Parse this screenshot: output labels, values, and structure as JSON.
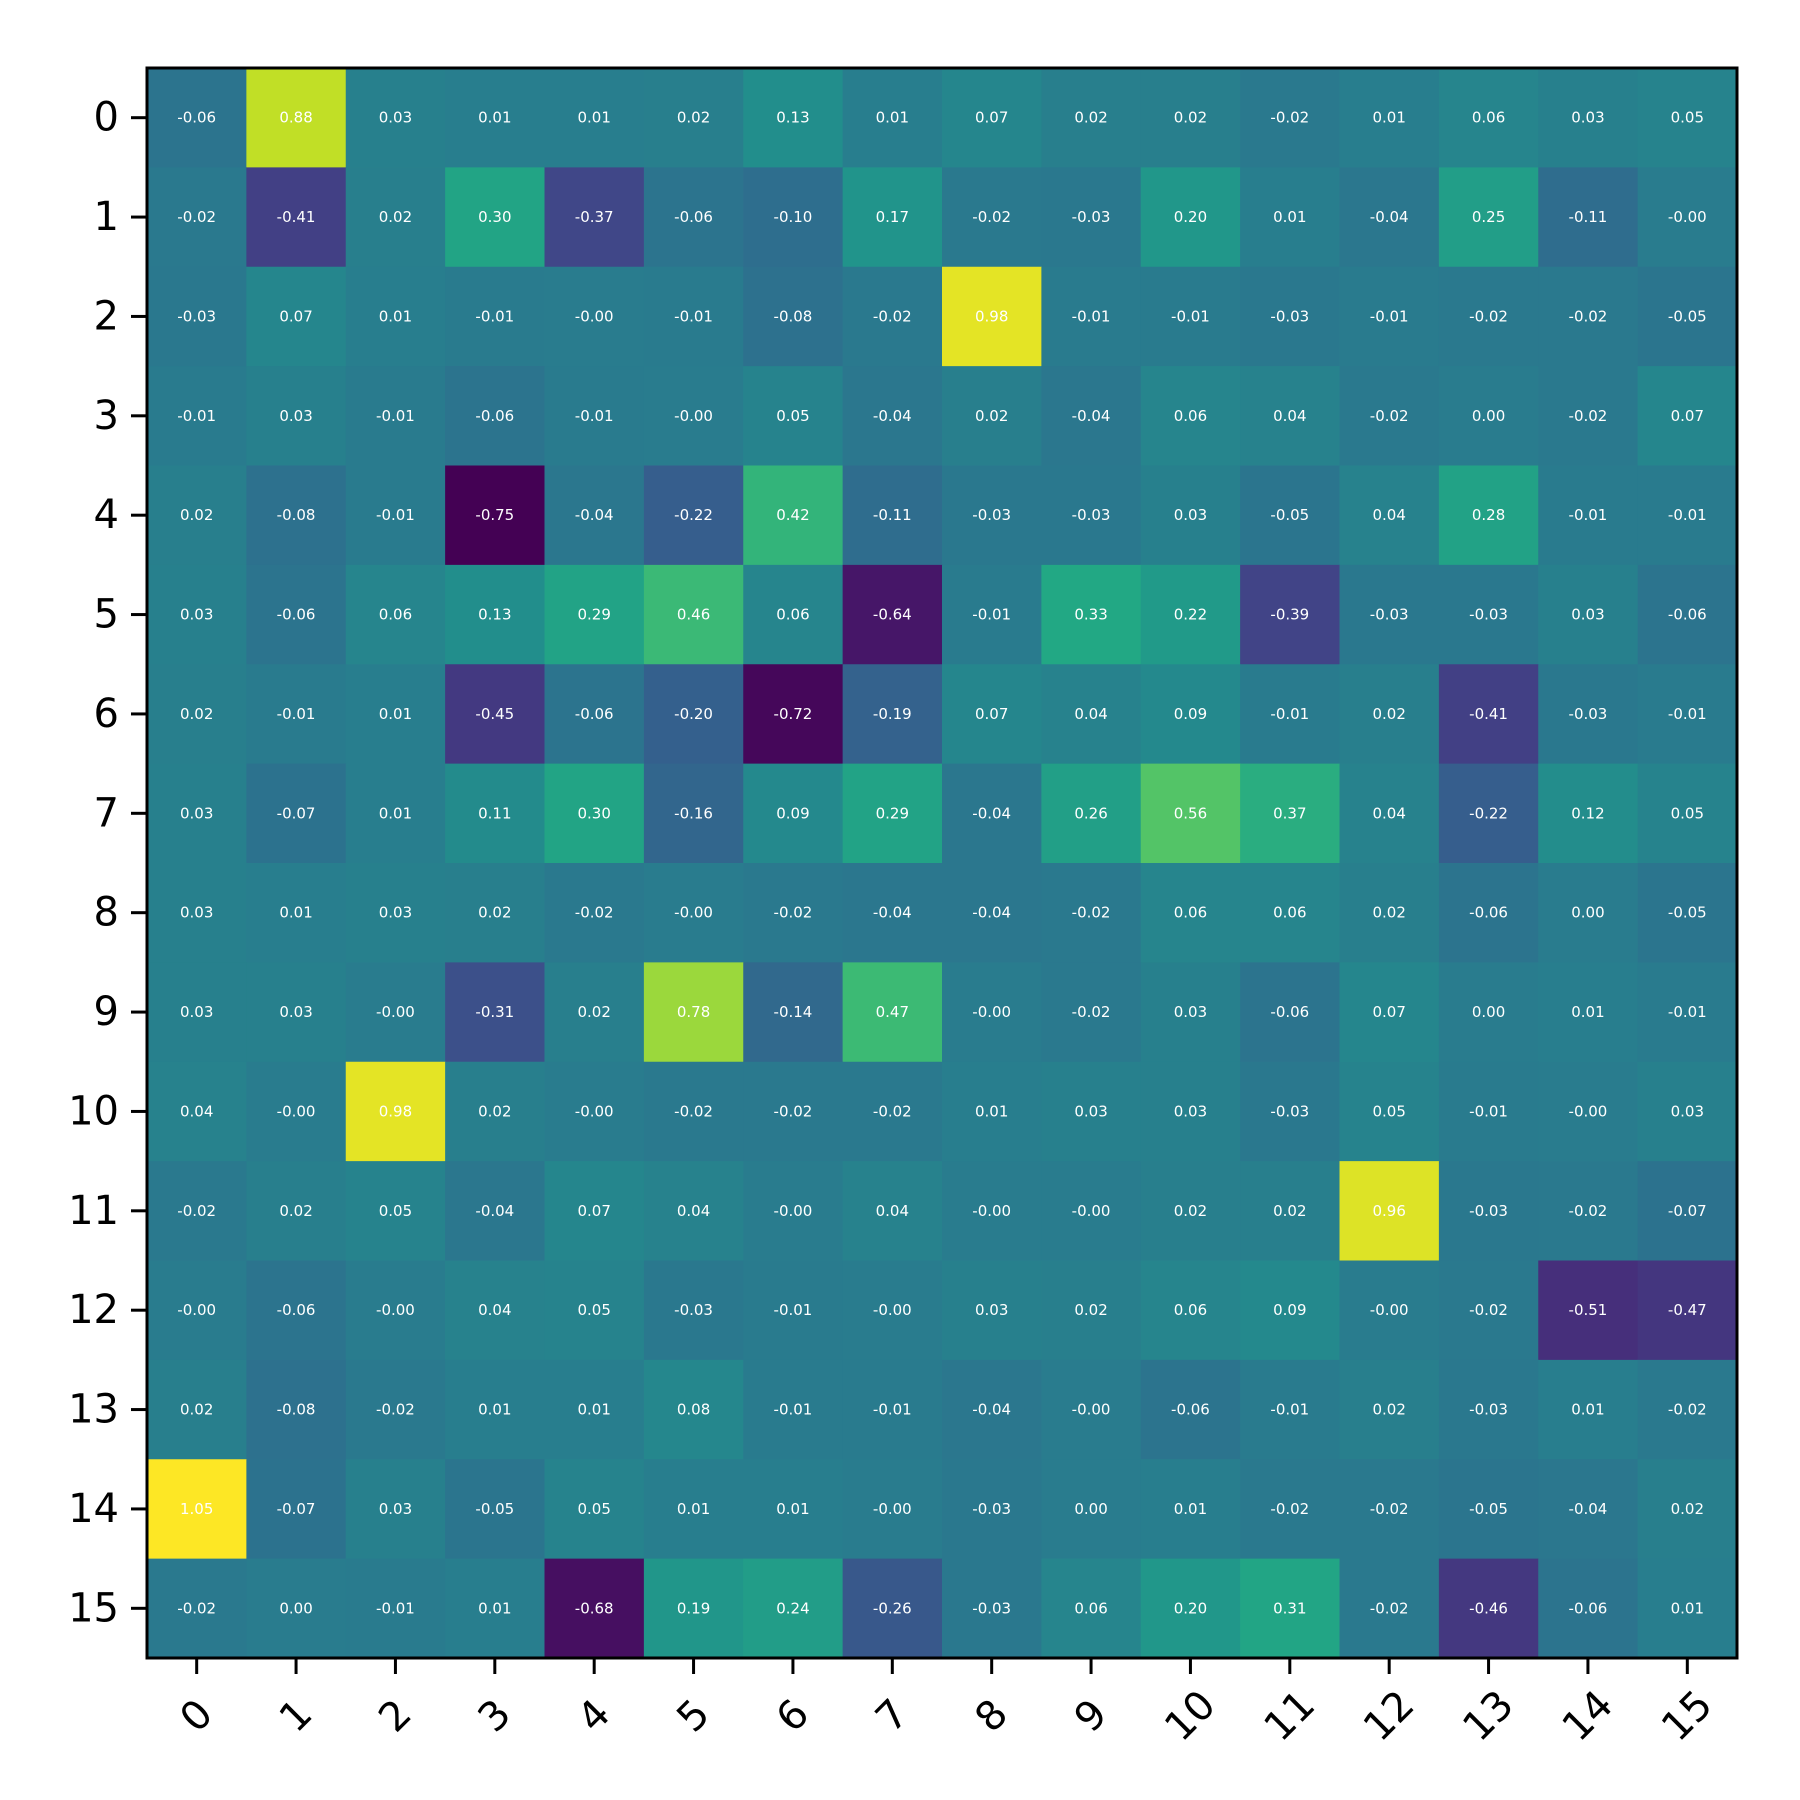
{
  "chart_data": {
    "type": "heatmap",
    "title": "",
    "xlabel": "",
    "ylabel": "",
    "colormap": "viridis",
    "x_categories": [
      "0",
      "1",
      "2",
      "3",
      "4",
      "5",
      "6",
      "7",
      "8",
      "9",
      "10",
      "11",
      "12",
      "13",
      "14",
      "15"
    ],
    "y_categories": [
      "0",
      "1",
      "2",
      "3",
      "4",
      "5",
      "6",
      "7",
      "8",
      "9",
      "10",
      "11",
      "12",
      "13",
      "14",
      "15"
    ],
    "value_range": [
      -0.75,
      1.05
    ],
    "x_tick_rotation_deg": 45,
    "grid": false,
    "values": [
      [
        -0.06,
        0.88,
        0.03,
        0.01,
        0.01,
        0.02,
        0.13,
        0.01,
        0.07,
        0.02,
        0.02,
        -0.02,
        0.01,
        0.06,
        0.03,
        0.05
      ],
      [
        -0.02,
        -0.41,
        0.02,
        0.3,
        -0.37,
        -0.06,
        -0.1,
        0.17,
        -0.02,
        -0.03,
        0.2,
        0.01,
        -0.04,
        0.25,
        -0.11,
        -0.0
      ],
      [
        -0.03,
        0.07,
        0.01,
        -0.01,
        -0.0,
        -0.01,
        -0.08,
        -0.02,
        0.98,
        -0.01,
        -0.01,
        -0.03,
        -0.01,
        -0.02,
        -0.02,
        -0.05
      ],
      [
        -0.01,
        0.03,
        -0.01,
        -0.06,
        -0.01,
        -0.0,
        0.05,
        -0.04,
        0.02,
        -0.04,
        0.06,
        0.04,
        -0.02,
        0.0,
        -0.02,
        0.07
      ],
      [
        0.02,
        -0.08,
        -0.01,
        -0.75,
        -0.04,
        -0.22,
        0.42,
        -0.11,
        -0.03,
        -0.03,
        0.03,
        -0.05,
        0.04,
        0.28,
        -0.01,
        -0.01
      ],
      [
        0.03,
        -0.06,
        0.06,
        0.13,
        0.29,
        0.46,
        0.06,
        -0.64,
        -0.01,
        0.33,
        0.22,
        -0.39,
        -0.03,
        -0.03,
        0.03,
        -0.06
      ],
      [
        0.02,
        -0.01,
        0.01,
        -0.45,
        -0.06,
        -0.2,
        -0.72,
        -0.19,
        0.07,
        0.04,
        0.09,
        -0.01,
        0.02,
        -0.41,
        -0.03,
        -0.01
      ],
      [
        0.03,
        -0.07,
        0.01,
        0.11,
        0.3,
        -0.16,
        0.09,
        0.29,
        -0.04,
        0.26,
        0.56,
        0.37,
        0.04,
        -0.22,
        0.12,
        0.05
      ],
      [
        0.03,
        0.01,
        0.03,
        0.02,
        -0.02,
        -0.0,
        -0.02,
        -0.04,
        -0.04,
        -0.02,
        0.06,
        0.06,
        0.02,
        -0.06,
        0.0,
        -0.05
      ],
      [
        0.03,
        0.03,
        -0.0,
        -0.31,
        0.02,
        0.78,
        -0.14,
        0.47,
        -0.0,
        -0.02,
        0.03,
        -0.06,
        0.07,
        0.0,
        0.01,
        -0.01
      ],
      [
        0.04,
        -0.0,
        0.98,
        0.02,
        -0.0,
        -0.02,
        -0.02,
        -0.02,
        0.01,
        0.03,
        0.03,
        -0.03,
        0.05,
        -0.01,
        -0.0,
        0.03
      ],
      [
        -0.02,
        0.02,
        0.05,
        -0.04,
        0.07,
        0.04,
        -0.0,
        0.04,
        -0.0,
        -0.0,
        0.02,
        0.02,
        0.96,
        -0.03,
        -0.02,
        -0.07
      ],
      [
        -0.0,
        -0.06,
        -0.0,
        0.04,
        0.05,
        -0.03,
        -0.01,
        -0.0,
        0.03,
        0.02,
        0.06,
        0.09,
        -0.0,
        -0.02,
        -0.51,
        -0.47
      ],
      [
        0.02,
        -0.08,
        -0.02,
        0.01,
        0.01,
        0.08,
        -0.01,
        -0.01,
        -0.04,
        -0.0,
        -0.06,
        -0.01,
        0.02,
        -0.03,
        0.01,
        -0.02
      ],
      [
        1.05,
        -0.07,
        0.03,
        -0.05,
        0.05,
        0.01,
        0.01,
        -0.0,
        -0.03,
        0.0,
        0.01,
        -0.02,
        -0.02,
        -0.05,
        -0.04,
        0.02
      ],
      [
        -0.02,
        0.0,
        -0.01,
        0.01,
        -0.68,
        0.19,
        0.24,
        -0.26,
        -0.03,
        0.06,
        0.2,
        0.31,
        -0.02,
        -0.46,
        -0.06,
        0.01
      ]
    ]
  }
}
